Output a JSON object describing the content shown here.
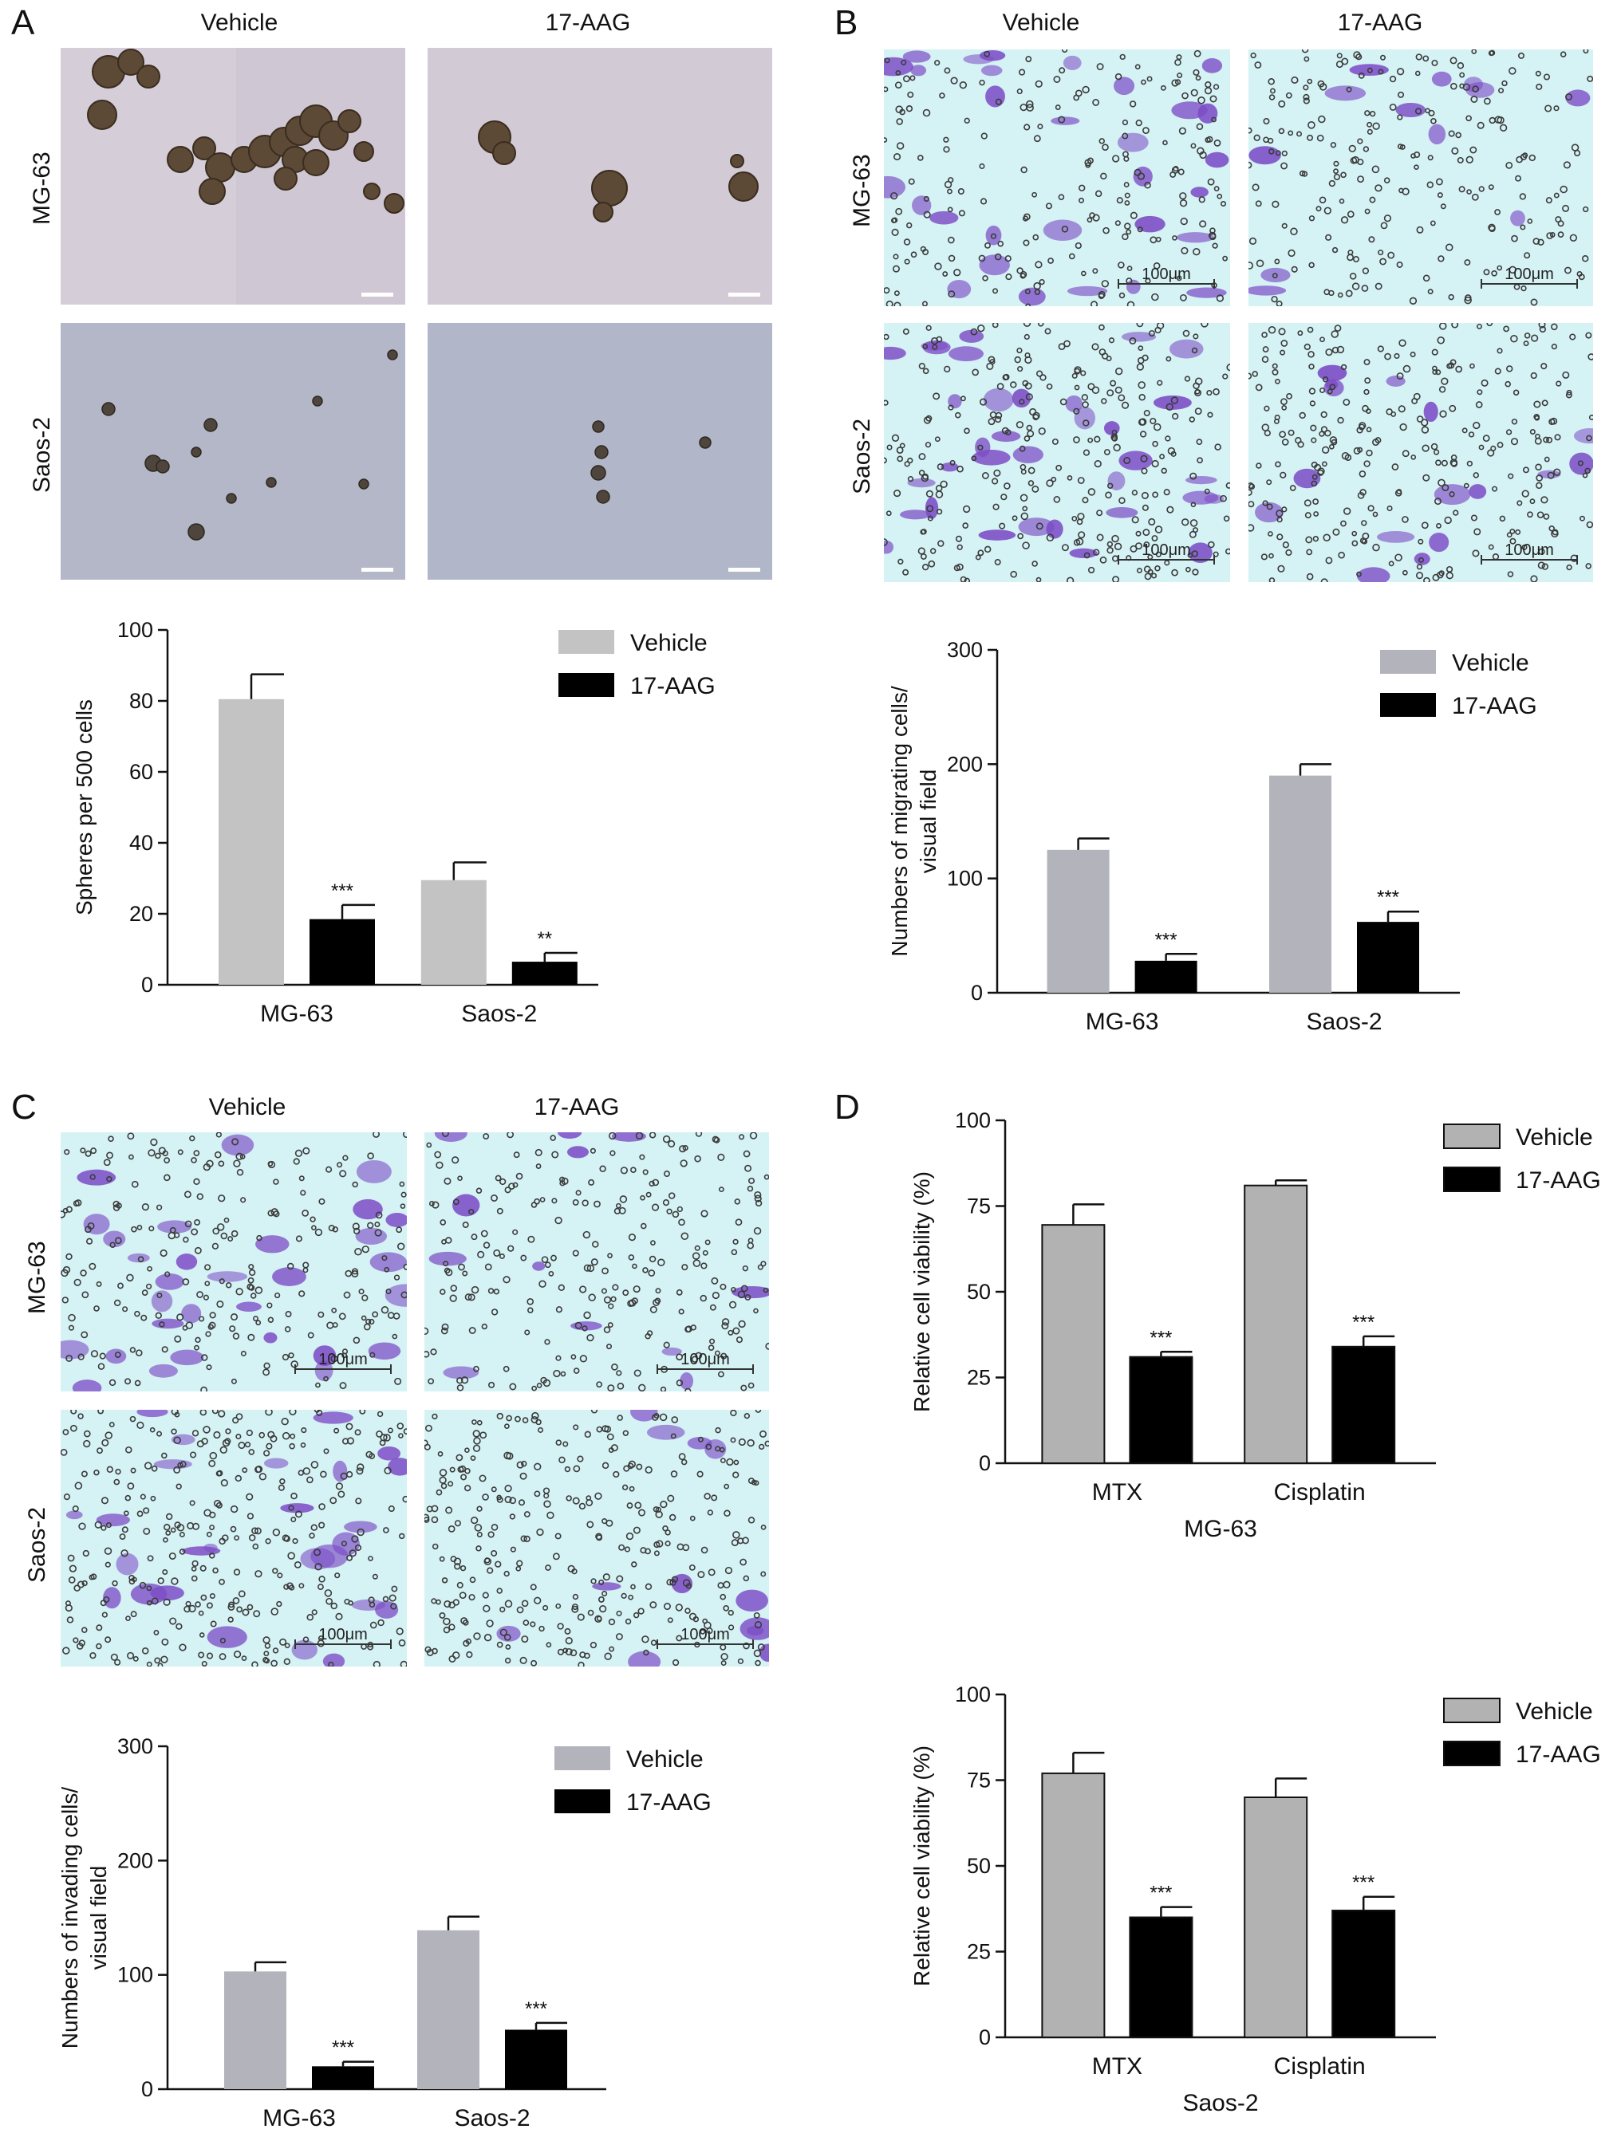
{
  "panels": {
    "A": {
      "letter": "A",
      "columns": [
        "Vehicle",
        "17-AAG"
      ],
      "rows": [
        "MG-63",
        "Saos-2"
      ]
    },
    "B": {
      "letter": "B",
      "columns": [
        "Vehicle",
        "17-AAG"
      ],
      "rows": [
        "MG-63",
        "Saos-2"
      ],
      "scale_bar": "100μm"
    },
    "C": {
      "letter": "C",
      "columns": [
        "Vehicle",
        "17-AAG"
      ],
      "rows": [
        "MG-63",
        "Saos-2"
      ],
      "scale_bar": "100μm"
    },
    "D": {
      "letter": "D"
    }
  },
  "colors": {
    "vehicle_light": "#c3c3c3",
    "vehicle_medium": "#b3b3bc",
    "vehicle_dark": "#b2b2b2",
    "treatment": "#000000",
    "sphere_bg": "#cfc8d4",
    "sphere_bg2": "#a9b0c8",
    "transwell_bg": "#d5f2f4",
    "crystal_violet": "#7c4cc6"
  },
  "chart_data": [
    {
      "id": "A",
      "type": "bar",
      "categories": [
        "MG-63",
        "Saos-2"
      ],
      "ylabel": "Spheres per 500 cells",
      "ylim": [
        0,
        100
      ],
      "yticks": [
        0,
        20,
        40,
        60,
        80,
        100
      ],
      "series": [
        {
          "name": "Vehicle",
          "values": [
            80.5,
            29.5
          ],
          "errors": [
            7,
            5
          ]
        },
        {
          "name": "17-AAG",
          "values": [
            18.5,
            6.5
          ],
          "errors": [
            4,
            2.5
          ]
        }
      ],
      "significance": [
        "***",
        "**"
      ],
      "legend": "top-right"
    },
    {
      "id": "B",
      "type": "bar",
      "categories": [
        "MG-63",
        "Saos-2"
      ],
      "ylabel": "Numbers of migrating cells/ visual field",
      "ylim": [
        0,
        300
      ],
      "yticks": [
        0,
        100,
        200,
        300
      ],
      "series": [
        {
          "name": "Vehicle",
          "values": [
            125,
            190
          ],
          "errors": [
            10,
            10
          ]
        },
        {
          "name": "17-AAG",
          "values": [
            28,
            62
          ],
          "errors": [
            6,
            9
          ]
        }
      ],
      "significance": [
        "***",
        "***"
      ],
      "legend": "top-right"
    },
    {
      "id": "C",
      "type": "bar",
      "categories": [
        "MG-63",
        "Saos-2"
      ],
      "ylabel": "Numbers of invading cells/ visual field",
      "ylim": [
        0,
        300
      ],
      "yticks": [
        0,
        100,
        200,
        300
      ],
      "series": [
        {
          "name": "Vehicle",
          "values": [
            103,
            139
          ],
          "errors": [
            8,
            12
          ]
        },
        {
          "name": "17-AAG",
          "values": [
            20,
            52
          ],
          "errors": [
            4,
            6
          ]
        }
      ],
      "significance": [
        "***",
        "***"
      ],
      "legend": "top-right"
    },
    {
      "id": "D1",
      "type": "bar",
      "categories": [
        "MTX",
        "Cisplatin"
      ],
      "xlabel": "MG-63",
      "ylabel": "Relative cell viability (%)",
      "ylim": [
        0,
        100
      ],
      "yticks": [
        0,
        25,
        50,
        75,
        100
      ],
      "series": [
        {
          "name": "Vehicle",
          "values": [
            69.5,
            81
          ],
          "errors": [
            6,
            1.5
          ]
        },
        {
          "name": "17-AAG",
          "values": [
            31,
            34
          ],
          "errors": [
            1.5,
            3
          ]
        }
      ],
      "significance": [
        "***",
        "***"
      ],
      "legend": "top-right"
    },
    {
      "id": "D2",
      "type": "bar",
      "categories": [
        "MTX",
        "Cisplatin"
      ],
      "xlabel": "Saos-2",
      "ylabel": "Relative cell viability (%)",
      "ylim": [
        0,
        100
      ],
      "yticks": [
        0,
        25,
        50,
        75,
        100
      ],
      "series": [
        {
          "name": "Vehicle",
          "values": [
            77,
            70
          ],
          "errors": [
            6,
            5.5
          ]
        },
        {
          "name": "17-AAG",
          "values": [
            35,
            37
          ],
          "errors": [
            3,
            4
          ]
        }
      ],
      "significance": [
        "***",
        "***"
      ],
      "legend": "top-right"
    }
  ]
}
